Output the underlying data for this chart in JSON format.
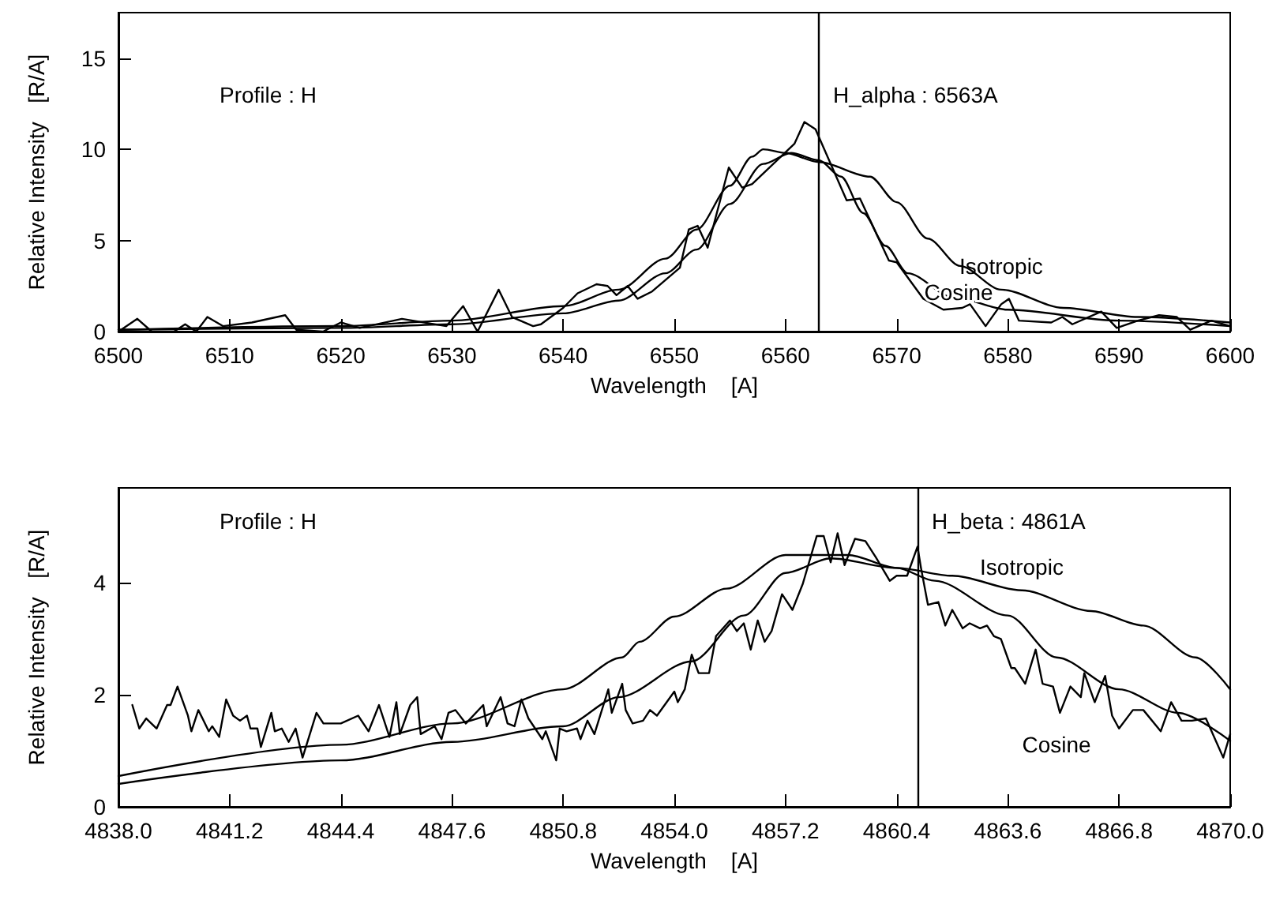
{
  "chart_data": [
    {
      "type": "line",
      "xlabel": "Wavelength    [A]",
      "ylabel": "Relative Intensity   [R/A]",
      "xlim": [
        6500,
        6600
      ],
      "xticks": [
        6500,
        6510,
        6520,
        6530,
        6540,
        6550,
        6560,
        6570,
        6580,
        6590,
        6600
      ],
      "ylim": [
        0,
        17.5
      ],
      "yticks": [
        0,
        5,
        10,
        15
      ],
      "grid": false,
      "marker": "none",
      "line_style": "solid",
      "annotations": [
        "Profile : H"
      ],
      "ref_lines": [
        {
          "axis": "x",
          "value": 6563,
          "label": "H_alpha : 6563A",
          "color": "#000000"
        }
      ],
      "series": [
        {
          "color": "#000000",
          "x": [
            6500,
            6501.7,
            6503,
            6505,
            6506,
            6507,
            6508,
            6509.4,
            6512,
            6515,
            6516,
            6518.4,
            6520,
            6521.7,
            6525.5,
            6529.5,
            6531,
            6532.3,
            6534.2,
            6535.4,
            6537.3,
            6538,
            6540,
            6541.3,
            6543,
            6544,
            6544.8,
            6545.8,
            6546.7,
            6548,
            6550.5,
            6551.3,
            6552.1,
            6553,
            6554.9,
            6556.1,
            6557,
            6560.8,
            6561.7,
            6562.7,
            6565.5,
            6566.7,
            6569.3,
            6570,
            6572.4,
            6574.2,
            6575.9,
            6576.6,
            6578,
            6579.4,
            6580.1,
            6581,
            6583.9,
            6584.9,
            6585.8,
            6588.4,
            6589.8,
            6591.7,
            6593.6,
            6595.2,
            6596.4,
            6598.3,
            6600
          ],
          "values": [
            0,
            0.7,
            0,
            0,
            0.4,
            0,
            0.8,
            0.3,
            0.5,
            0.9,
            0.1,
            0,
            0.5,
            0.2,
            0.7,
            0.3,
            1.4,
            0,
            2.3,
            0.8,
            0.3,
            0.4,
            1.3,
            2.1,
            2.6,
            2.5,
            2,
            2.5,
            1.8,
            2.2,
            3.5,
            5.6,
            5.8,
            4.6,
            9,
            7.9,
            8.1,
            10.3,
            11.5,
            11.1,
            7.2,
            7.3,
            3.9,
            3.8,
            1.8,
            1.2,
            1.3,
            1.5,
            0.3,
            1.5,
            1.8,
            0.6,
            0.5,
            0.8,
            0.4,
            1.1,
            0.2,
            0.6,
            0.9,
            0.8,
            0.1,
            0.6,
            0.3
          ]
        },
        {
          "name": "Isotropic",
          "color": "#000000",
          "x": [
            6500,
            6520,
            6530,
            6540,
            6545,
            6549.2,
            6552,
            6555,
            6557,
            6558,
            6560,
            6563,
            6567.6,
            6570,
            6572.8,
            6575.7,
            6579.4,
            6585,
            6591.7,
            6600
          ],
          "values": [
            0.1,
            0.3,
            0.6,
            1.4,
            2.3,
            4,
            5.6,
            8,
            9.6,
            10,
            9.8,
            9.3,
            8.5,
            7.1,
            5.1,
            3.6,
            2.3,
            1.3,
            0.8,
            0.5
          ]
        },
        {
          "name": "Cosine",
          "color": "#000000",
          "x": [
            6500,
            6520,
            6530,
            6540,
            6545,
            6549.2,
            6552,
            6555,
            6558,
            6560.5,
            6563,
            6565,
            6567,
            6569,
            6571,
            6575,
            6580,
            6590,
            6600
          ],
          "values": [
            0.1,
            0.2,
            0.4,
            1,
            1.7,
            3.2,
            4.5,
            7,
            9.2,
            9.8,
            9.4,
            8.5,
            6.5,
            4.7,
            3.2,
            1.9,
            1.2,
            0.6,
            0.3
          ]
        }
      ]
    },
    {
      "type": "line",
      "xlabel": "Wavelength    [A]",
      "ylabel": "Relative Intensity   [R/A]",
      "xlim": [
        4838,
        4870
      ],
      "xticks": [
        {
          "value": 4838,
          "label": "4838.0"
        },
        {
          "value": 4841.2,
          "label": "4841.2"
        },
        {
          "value": 4844.4,
          "label": "4844.4"
        },
        {
          "value": 4847.6,
          "label": "4847.6"
        },
        {
          "value": 4850.8,
          "label": "4850.8"
        },
        {
          "value": 4854,
          "label": "4854.0"
        },
        {
          "value": 4857.2,
          "label": "4857.2"
        },
        {
          "value": 4860.4,
          "label": "4860.4"
        },
        {
          "value": 4863.6,
          "label": "4863.6"
        },
        {
          "value": 4866.8,
          "label": "4866.8"
        },
        {
          "value": 4870,
          "label": "4870.0"
        }
      ],
      "ylim": [
        0,
        5.7
      ],
      "yticks": [
        0,
        2,
        4
      ],
      "grid": false,
      "marker": "none",
      "line_style": "solid",
      "annotations": [
        "Profile : H"
      ],
      "ref_lines": [
        {
          "axis": "x",
          "value": 4861,
          "label": "H_beta : 4861A",
          "color": "#000000"
        }
      ],
      "series": [
        {
          "color": "#000000",
          "x": [
            4838.4,
            4838.6,
            4838.8,
            4839.1,
            4839.4,
            4839.5,
            4839.7,
            4840,
            4840.1,
            4840.3,
            4840.6,
            4840.7,
            4840.9,
            4841.1,
            4841.3,
            4841.5,
            4841.7,
            4841.8,
            4842,
            4842.1,
            4842.4,
            4842.5,
            4842.7,
            4842.9,
            4843.1,
            4843.3,
            4843.7,
            4843.9,
            4844.4,
            4844.9,
            4845.2,
            4845.5,
            4845.8,
            4846,
            4846.1,
            4846.4,
            4846.6,
            4846.7,
            4847.1,
            4847.3,
            4847.5,
            4847.7,
            4848,
            4848.5,
            4848.6,
            4849,
            4849.2,
            4849.4,
            4849.6,
            4849.8,
            4850.2,
            4850.3,
            4850.6,
            4850.7,
            4850.9,
            4851.2,
            4851.3,
            4851.5,
            4851.7,
            4852.1,
            4852.2,
            4852.5,
            4852.6,
            4852.8,
            4853.1,
            4853.3,
            4853.5,
            4854,
            4854.1,
            4854.3,
            4854.5,
            4854.7,
            4855,
            4855.2,
            4855.6,
            4855.8,
            4856,
            4856.2,
            4856.4,
            4856.6,
            4856.8,
            4857.1,
            4857.4,
            4857.7,
            4858.1,
            4858.3,
            4858.5,
            4858.7,
            4858.9,
            4859.2,
            4859.5,
            4859.8,
            4860.2,
            4860.4,
            4860.7,
            4861,
            4861.1,
            4861.3,
            4861.6,
            4861.8,
            4862,
            4862.3,
            4862.5,
            4862.8,
            4863,
            4863.2,
            4863.4,
            4863.7,
            4863.8,
            4864.1,
            4864.4,
            4864.6,
            4864.9,
            4865.1,
            4865.4,
            4865.7,
            4865.8,
            4866.1,
            4866.4,
            4866.6,
            4866.8,
            4867.2,
            4867.5,
            4868,
            4868.3,
            4868.6,
            4868.9,
            4869.3,
            4869.6,
            4869.8,
            4870
          ],
          "values": [
            1.82,
            1.4,
            1.58,
            1.4,
            1.82,
            1.82,
            2.15,
            1.63,
            1.35,
            1.73,
            1.35,
            1.44,
            1.25,
            1.92,
            1.63,
            1.54,
            1.63,
            1.4,
            1.4,
            1.07,
            1.68,
            1.35,
            1.4,
            1.16,
            1.4,
            0.88,
            1.68,
            1.49,
            1.49,
            1.63,
            1.35,
            1.82,
            1.25,
            1.87,
            1.3,
            1.82,
            1.96,
            1.3,
            1.44,
            1.21,
            1.68,
            1.73,
            1.49,
            1.82,
            1.44,
            1.96,
            1.49,
            1.44,
            1.92,
            1.58,
            1.21,
            1.35,
            0.83,
            1.4,
            1.35,
            1.4,
            1.21,
            1.54,
            1.3,
            2.1,
            1.68,
            2.2,
            1.73,
            1.49,
            1.54,
            1.73,
            1.63,
            2.06,
            1.87,
            2.1,
            2.72,
            2.39,
            2.39,
            3.05,
            3.33,
            3.14,
            3.28,
            2.81,
            3.33,
            2.95,
            3.14,
            3.8,
            3.52,
            3.99,
            4.84,
            4.84,
            4.37,
            4.89,
            4.32,
            4.79,
            4.75,
            4.46,
            4.04,
            4.13,
            4.13,
            4.65,
            4.27,
            3.61,
            3.66,
            3.24,
            3.52,
            3.19,
            3.28,
            3.19,
            3.24,
            3.05,
            3,
            2.48,
            2.48,
            2.2,
            2.81,
            2.2,
            2.15,
            1.68,
            2.15,
            1.96,
            2.39,
            1.87,
            2.34,
            1.63,
            1.4,
            1.73,
            1.73,
            1.35,
            1.87,
            1.54,
            1.54,
            1.58,
            1.16,
            0.88,
            1.3
          ]
        },
        {
          "name": "Isotropic",
          "color": "#000000",
          "x": [
            4838,
            4844.4,
            4847.6,
            4850.8,
            4852.5,
            4853,
            4854,
            4855.5,
            4857.2,
            4858,
            4859,
            4860.4,
            4862,
            4864,
            4866,
            4867.5,
            4869,
            4870
          ],
          "values": [
            0.55,
            1.11,
            1.49,
            2.1,
            2.67,
            2.95,
            3.4,
            3.9,
            4.5,
            4.5,
            4.5,
            4.27,
            4.13,
            3.87,
            3.5,
            3.24,
            2.67,
            2.1
          ]
        },
        {
          "name": "Cosine",
          "color": "#000000",
          "x": [
            4838,
            4844.4,
            4847.6,
            4850.8,
            4852.4,
            4854.5,
            4856,
            4857.2,
            4858.5,
            4860.4,
            4861.5,
            4863.6,
            4865,
            4866.8,
            4868.5,
            4870
          ],
          "values": [
            0.41,
            0.83,
            1.16,
            1.44,
            1.96,
            2.6,
            3.42,
            4.18,
            4.44,
            4.27,
            4.04,
            3.42,
            2.67,
            2.1,
            1.68,
            1.18
          ]
        }
      ]
    }
  ]
}
